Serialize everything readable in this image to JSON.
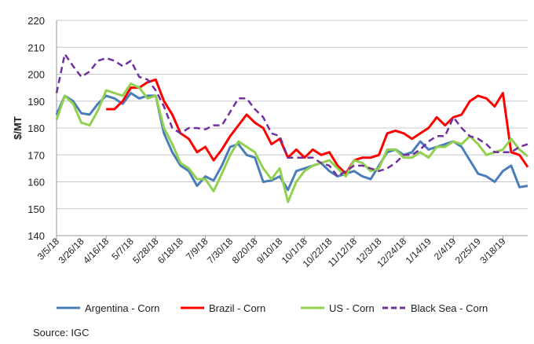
{
  "chart_data": {
    "type": "line",
    "title": "",
    "xlabel": "",
    "ylabel": "$/MT",
    "ylim": [
      140,
      220
    ],
    "yticks": [
      140,
      150,
      160,
      170,
      180,
      190,
      200,
      210,
      220
    ],
    "grid": true,
    "legend": "bottom",
    "x_unit": "weeks since 3/5/18",
    "xlim": [
      0,
      57
    ],
    "xtick_labels": [
      "3/5/18",
      "3/26/18",
      "4/16/18",
      "5/7/18",
      "5/28/18",
      "6/18/18",
      "7/9/18",
      "7/30/18",
      "8/20/18",
      "9/10/18",
      "10/1/18",
      "10/22/18",
      "11/12/18",
      "12/3/18",
      "12/24/18",
      "1/14/19",
      "2/4/19",
      "2/25/19",
      "3/18/19"
    ],
    "series": [
      {
        "name": "Argentina - Corn",
        "color": "#4a7ebb",
        "dash": false,
        "start": 0,
        "values": [
          185,
          192,
          190,
          185.5,
          185,
          189,
          192,
          191,
          189,
          193,
          191,
          192,
          192,
          178,
          171,
          166,
          164,
          158.5,
          162,
          160.5,
          166,
          173,
          174,
          170,
          169,
          160,
          160.5,
          162,
          157,
          164,
          165,
          166,
          167,
          164,
          162,
          163,
          164,
          162,
          161,
          166,
          171,
          172,
          170,
          171,
          175,
          172,
          173,
          174,
          175,
          173,
          168,
          163,
          162,
          160,
          164,
          166,
          158,
          158.5
        ]
      },
      {
        "name": "Brazil - Corn",
        "color": "#ff0000",
        "dash": false,
        "start": 6,
        "values": [
          187,
          187,
          190,
          195,
          195,
          197,
          198,
          190,
          185,
          178,
          176,
          171,
          173,
          168,
          172,
          177,
          181,
          185,
          182,
          180,
          174,
          176,
          169,
          172,
          169,
          172,
          170,
          171,
          166,
          163,
          168,
          169,
          169,
          170,
          178,
          179,
          178,
          176,
          178,
          180,
          184,
          181,
          184,
          185,
          190,
          192,
          191,
          188,
          193,
          171,
          170,
          165.5
        ]
      },
      {
        "name": "US - Corn",
        "color": "#92d050",
        "dash": false,
        "start": 0,
        "values": [
          183,
          192,
          189,
          182,
          181,
          186.5,
          194,
          193,
          192,
          196.5,
          195,
          191,
          192,
          180,
          174,
          167,
          165,
          161,
          161,
          156.5,
          163,
          170,
          175,
          173,
          171,
          165,
          161,
          165,
          152.5,
          160,
          164,
          166,
          167,
          168,
          165,
          162,
          168,
          167,
          164,
          165,
          172,
          172,
          169,
          169,
          171,
          169,
          173,
          173,
          175,
          174,
          177,
          174,
          170,
          171,
          172,
          176,
          172,
          169.5
        ]
      },
      {
        "name": "Black Sea - Corn",
        "color": "#7030a0",
        "dash": true,
        "start": 0,
        "values": [
          193,
          207.5,
          203,
          199,
          201,
          205,
          206,
          205,
          203,
          205,
          199,
          198,
          194,
          188,
          180,
          178,
          180,
          180,
          179.5,
          181,
          181,
          186,
          191,
          191,
          187,
          184,
          178,
          177,
          169,
          169,
          169,
          169,
          167,
          166,
          162,
          164,
          166,
          166,
          165,
          164,
          165,
          167,
          170,
          170,
          172,
          175,
          177,
          177,
          184,
          180,
          177,
          176,
          174,
          171,
          171,
          171,
          173,
          174
        ]
      }
    ]
  },
  "source": "Source: IGC"
}
